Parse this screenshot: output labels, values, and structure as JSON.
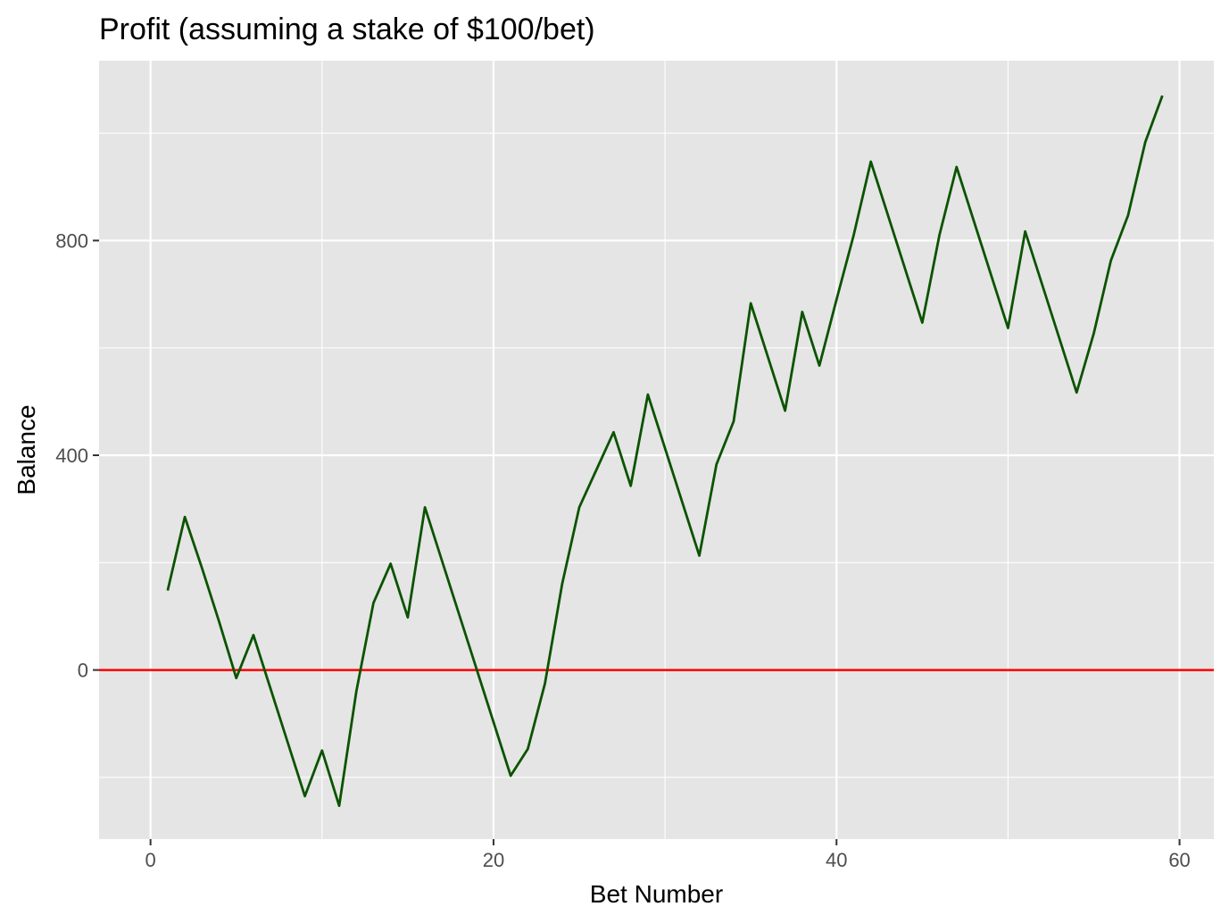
{
  "chart_data": {
    "type": "line",
    "title": "Profit (assuming a stake of $100/bet)",
    "xlabel": "Bet Number",
    "ylabel": "Balance",
    "xlim": [
      -3,
      62
    ],
    "ylim": [
      -315,
      1135
    ],
    "x_ticks": [
      0,
      20,
      40,
      60
    ],
    "x_minor_ticks": [
      10,
      30,
      50
    ],
    "y_ticks": [
      0,
      400,
      800
    ],
    "y_minor_ticks": [
      -200,
      200,
      600,
      1000
    ],
    "grid": true,
    "panel_background": "#e5e5e5",
    "grid_color": "#ffffff",
    "series": [
      {
        "color": "#0b5300",
        "x": [
          1,
          2,
          3,
          4,
          5,
          6,
          7,
          8,
          9,
          10,
          11,
          12,
          13,
          14,
          15,
          16,
          17,
          18,
          19,
          20,
          21,
          22,
          23,
          24,
          25,
          26,
          27,
          28,
          29,
          30,
          31,
          32,
          33,
          34,
          35,
          36,
          37,
          38,
          39,
          40,
          41,
          42,
          43,
          44,
          45,
          46,
          47,
          48,
          49,
          50,
          51,
          52,
          53,
          54,
          55,
          56,
          57,
          58,
          59
        ],
        "y": [
          148,
          285,
          190,
          90,
          -15,
          65,
          -35,
          -135,
          -235,
          -150,
          -253,
          -40,
          125,
          198,
          98,
          303,
          203,
          103,
          3,
          -97,
          -197,
          -147,
          -25,
          160,
          303,
          373,
          443,
          343,
          513,
          413,
          313,
          213,
          383,
          463,
          683,
          583,
          483,
          667,
          567,
          690,
          810,
          947,
          847,
          747,
          647,
          810,
          937,
          837,
          737,
          637,
          817,
          717,
          617,
          517,
          627,
          763,
          847,
          983,
          1070
        ]
      }
    ],
    "reference_line": {
      "y": 0,
      "color": "#ff0000"
    }
  }
}
